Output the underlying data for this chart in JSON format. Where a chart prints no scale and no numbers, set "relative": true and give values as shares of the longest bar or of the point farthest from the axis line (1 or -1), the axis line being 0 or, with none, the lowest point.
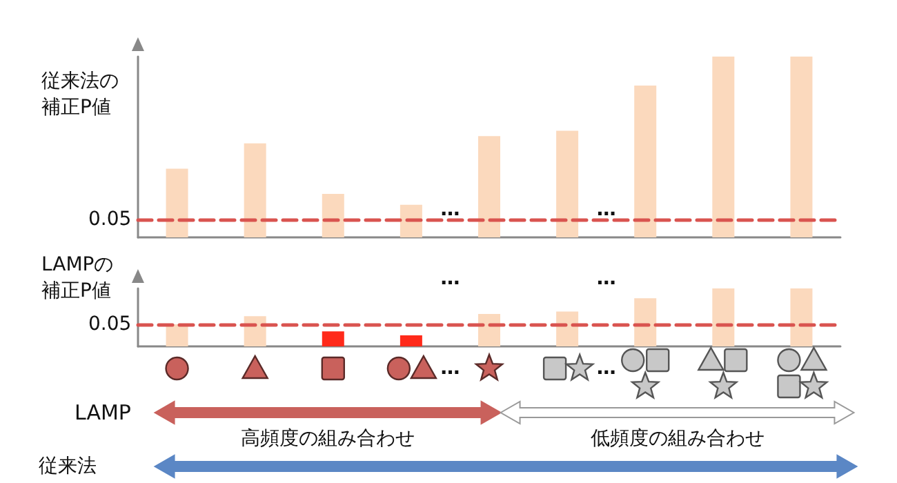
{
  "chart_data": [
    {
      "type": "bar",
      "relative": true,
      "ylabel": "従来法の補正P値",
      "categories": [
        null,
        null,
        null,
        null,
        null,
        null,
        null,
        null,
        null
      ],
      "series": [
        {
          "color": "#fbd9bd",
          "values": [
            0.38,
            0.52,
            0.24,
            0.18,
            0.56,
            0.59,
            0.84,
            1,
            1
          ]
        }
      ],
      "ref_lines": [
        {
          "axis": "y",
          "value": 0.1,
          "color": "#d9534f",
          "line_style": "dashed"
        }
      ],
      "annotations": [
        "0.05",
        "…",
        "…"
      ],
      "grid": false
    },
    {
      "type": "bar",
      "relative": true,
      "ylabel": "LAMPの補正P値",
      "categories": [
        null,
        null,
        null,
        null,
        null,
        null,
        null,
        null,
        null
      ],
      "series": [
        {
          "colors": [
            "#fbd9bd",
            "#fbd9bd",
            "#ff2a1a",
            "#ff2a1a",
            "#fbd9bd",
            "#fbd9bd",
            "#fbd9bd",
            "#fbd9bd",
            "#fbd9bd"
          ],
          "values": [
            0.38,
            0.52,
            0.26,
            0.19,
            0.56,
            0.6,
            0.83,
            1,
            1
          ]
        }
      ],
      "ref_lines": [
        {
          "axis": "y",
          "value": 0.37,
          "color": "#d9534f",
          "line_style": "dashed"
        }
      ],
      "annotations": [
        "0.05",
        "…",
        "…",
        "…",
        "…",
        "LAMP",
        "高頻度の組み合わせ",
        "低頻度の組み合わせ",
        "従来法"
      ],
      "grid": false
    }
  ]
}
